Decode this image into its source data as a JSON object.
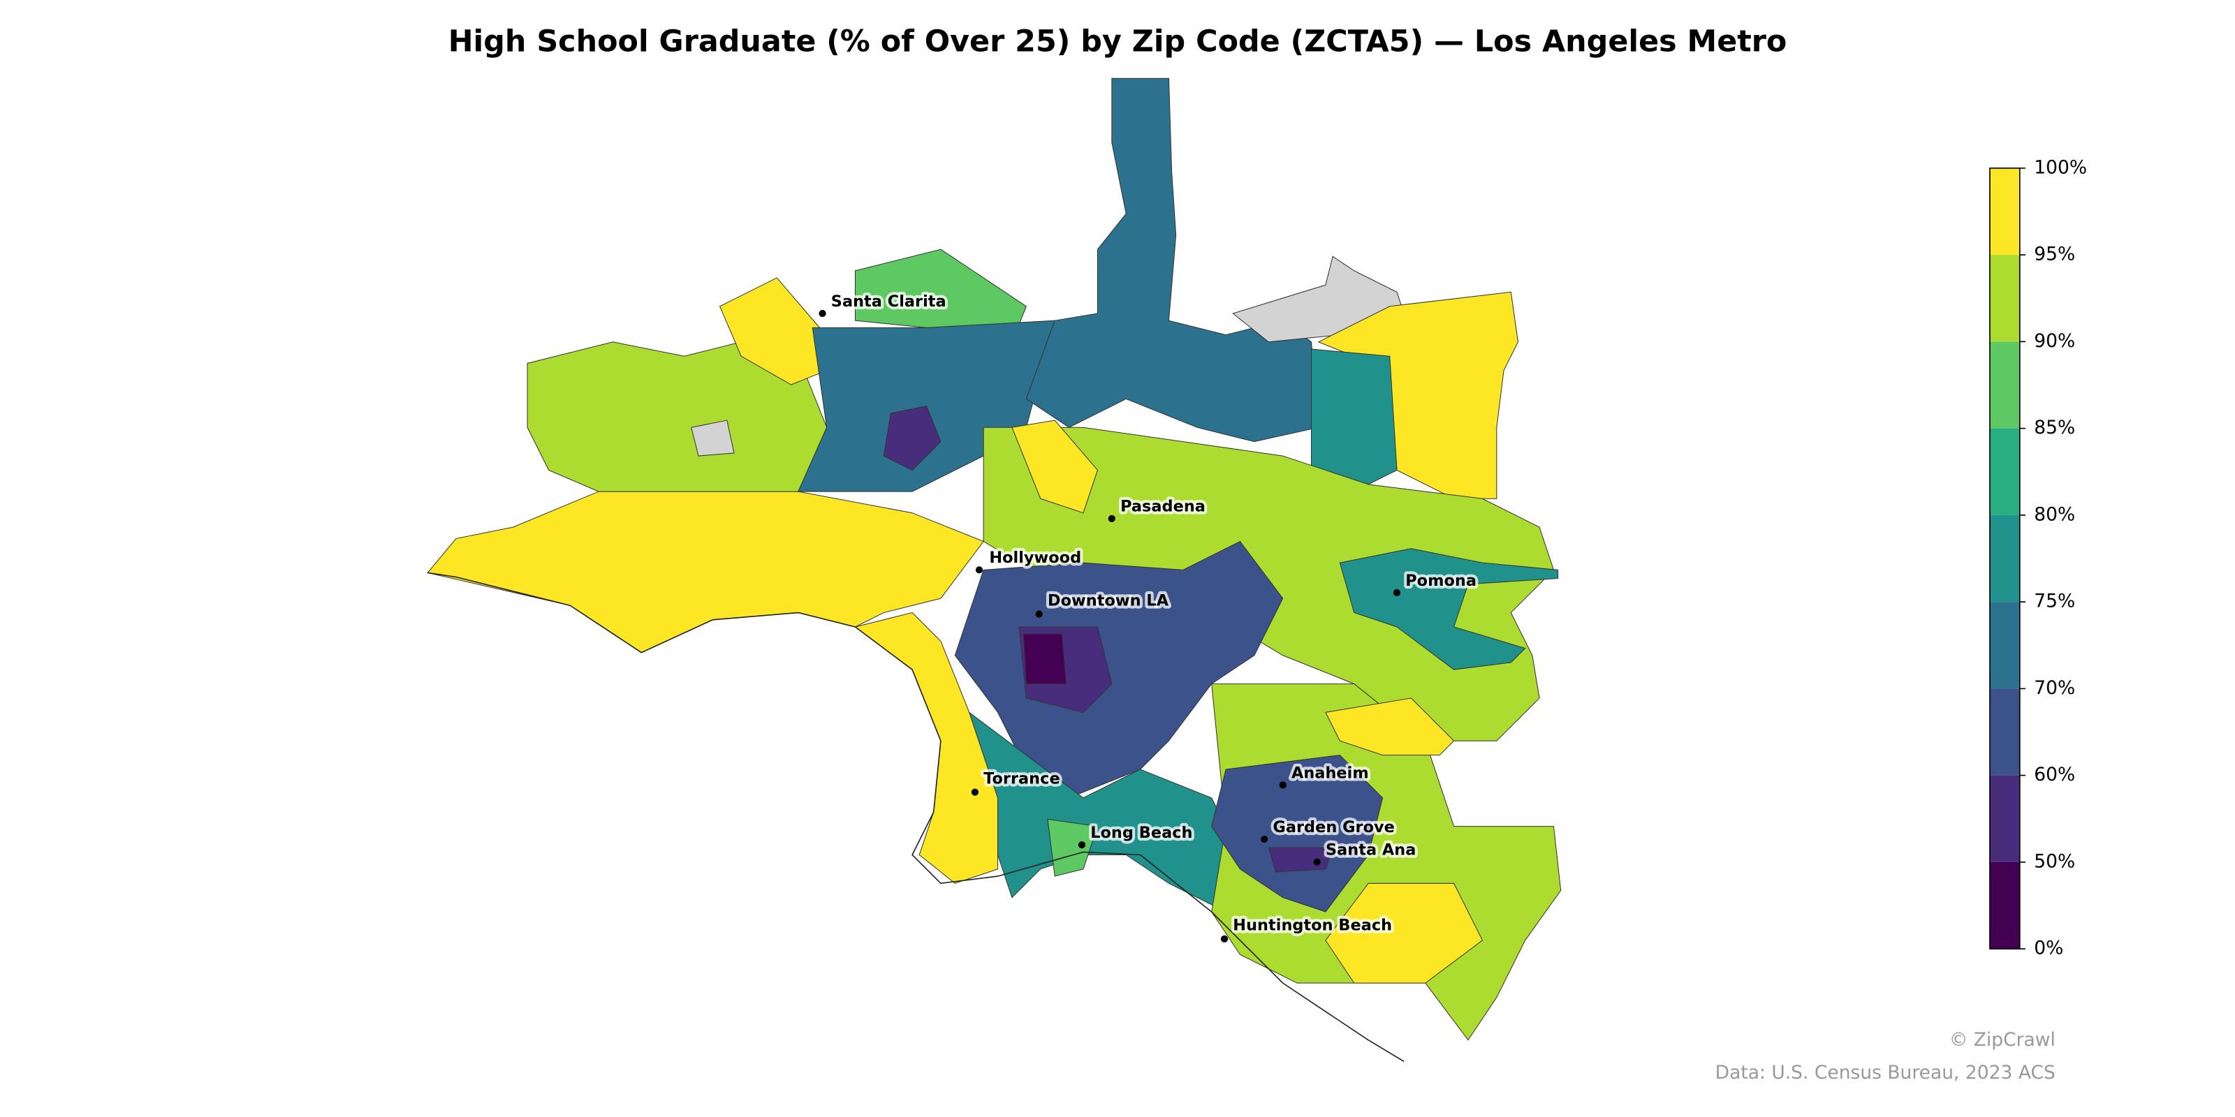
{
  "title": "High School Graduate (% of Over 25) by Zip Code (ZCTA5) — Los Angeles Metro",
  "cities": [
    "Santa Clarita",
    "Pasadena",
    "Hollywood",
    "Downtown LA",
    "Pomona",
    "Torrance",
    "Long Beach",
    "Anaheim",
    "Garden Grove",
    "Santa Ana",
    "Huntington Beach"
  ],
  "colorbar": {
    "bins": [
      0,
      50,
      60,
      70,
      75,
      80,
      85,
      90,
      95,
      100
    ],
    "colors": [
      "#440154",
      "#472d7b",
      "#3b528b",
      "#2c728e",
      "#21918c",
      "#28ae80",
      "#5ec962",
      "#addc30",
      "#fde725"
    ],
    "ticks": [
      {
        "value": 0,
        "label": "0%"
      },
      {
        "value": 50,
        "label": "50%"
      },
      {
        "value": 60,
        "label": "60%"
      },
      {
        "value": 70,
        "label": "70%"
      },
      {
        "value": 75,
        "label": "75%"
      },
      {
        "value": 80,
        "label": "80%"
      },
      {
        "value": 85,
        "label": "85%"
      },
      {
        "value": 90,
        "label": "90%"
      },
      {
        "value": 95,
        "label": "95%"
      },
      {
        "value": 100,
        "label": "100%"
      }
    ]
  },
  "credits": [
    "© ZipCrawl",
    "Data: U.S. Census Bureau, 2023 ACS"
  ]
}
